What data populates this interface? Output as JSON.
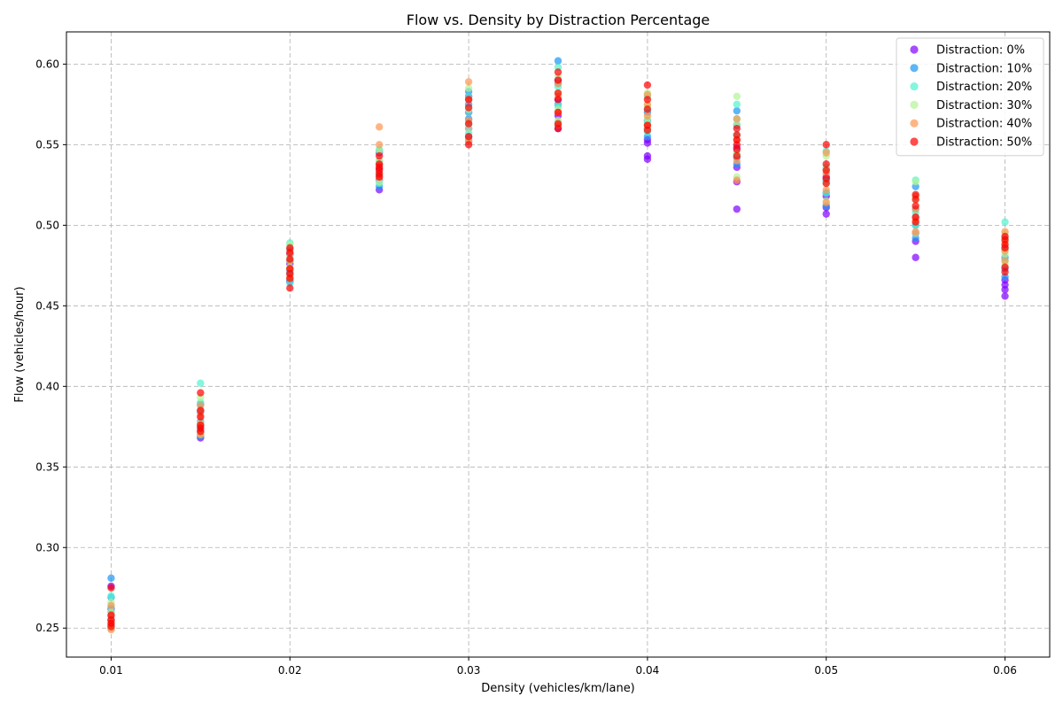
{
  "chart_data": {
    "type": "scatter",
    "title": "Flow vs. Density by Distraction Percentage",
    "xlabel": "Density (vehicles/km/lane)",
    "ylabel": "Flow (vehicles/hour)",
    "xlim": [
      0.0075,
      0.0625
    ],
    "ylim": [
      0.232,
      0.62
    ],
    "xticks": [
      0.01,
      0.02,
      0.03,
      0.04,
      0.05,
      0.06
    ],
    "xtick_labels": [
      "0.01",
      "0.02",
      "0.03",
      "0.04",
      "0.05",
      "0.06"
    ],
    "yticks": [
      0.25,
      0.3,
      0.35,
      0.4,
      0.45,
      0.5,
      0.55,
      0.6
    ],
    "ytick_labels": [
      "0.25",
      "0.30",
      "0.35",
      "0.40",
      "0.45",
      "0.50",
      "0.55",
      "0.60"
    ],
    "grid": true,
    "legend_position": "top-right",
    "x": [
      0.01,
      0.015,
      0.02,
      0.025,
      0.03,
      0.035,
      0.04,
      0.045,
      0.05,
      0.055,
      0.06
    ],
    "series": [
      {
        "name": "Distraction: 0%",
        "color": "#8000ff",
        "values": [
          [
            0.25,
            0.255,
            0.262,
            0.276
          ],
          [
            0.368,
            0.372,
            0.378,
            0.385
          ],
          [
            0.465,
            0.47,
            0.476,
            0.482
          ],
          [
            0.522,
            0.528,
            0.535,
            0.545
          ],
          [
            0.552,
            0.56,
            0.57,
            0.58
          ],
          [
            0.56,
            0.568,
            0.578,
            0.59
          ],
          [
            0.541,
            0.543,
            0.551,
            0.553
          ],
          [
            0.51,
            0.527,
            0.536,
            0.548
          ],
          [
            0.507,
            0.511,
            0.518,
            0.53
          ],
          [
            0.48,
            0.49,
            0.495,
            0.505
          ],
          [
            0.456,
            0.46,
            0.463,
            0.466
          ]
        ]
      },
      {
        "name": "Distraction: 10%",
        "color": "#1996f3",
        "values": [
          [
            0.252,
            0.26,
            0.269,
            0.281
          ],
          [
            0.369,
            0.375,
            0.384,
            0.389
          ],
          [
            0.466,
            0.472,
            0.478,
            0.485
          ],
          [
            0.524,
            0.531,
            0.538,
            0.546
          ],
          [
            0.555,
            0.566,
            0.575,
            0.583
          ],
          [
            0.562,
            0.575,
            0.588,
            0.602
          ],
          [
            0.555,
            0.56,
            0.565,
            0.57
          ],
          [
            0.538,
            0.542,
            0.562,
            0.571
          ],
          [
            0.512,
            0.52,
            0.528,
            0.535
          ],
          [
            0.492,
            0.5,
            0.51,
            0.524
          ],
          [
            0.468,
            0.473,
            0.48,
            0.486
          ]
        ]
      },
      {
        "name": "Distraction: 20%",
        "color": "#4df3ce",
        "values": [
          [
            0.251,
            0.257,
            0.263,
            0.27
          ],
          [
            0.37,
            0.378,
            0.39,
            0.402
          ],
          [
            0.464,
            0.47,
            0.478,
            0.489
          ],
          [
            0.526,
            0.532,
            0.54,
            0.547
          ],
          [
            0.557,
            0.563,
            0.57,
            0.58
          ],
          [
            0.564,
            0.574,
            0.586,
            0.598
          ],
          [
            0.558,
            0.563,
            0.572,
            0.58
          ],
          [
            0.544,
            0.556,
            0.566,
            0.575
          ],
          [
            0.52,
            0.527,
            0.536,
            0.546
          ],
          [
            0.5,
            0.508,
            0.518,
            0.528
          ],
          [
            0.478,
            0.485,
            0.492,
            0.502
          ]
        ]
      },
      {
        "name": "Distraction: 30%",
        "color": "#b2f396",
        "values": [
          [
            0.25,
            0.254,
            0.26,
            0.266
          ],
          [
            0.371,
            0.377,
            0.385,
            0.393
          ],
          [
            0.467,
            0.474,
            0.481,
            0.488
          ],
          [
            0.527,
            0.533,
            0.54,
            0.546
          ],
          [
            0.552,
            0.56,
            0.572,
            0.585
          ],
          [
            0.565,
            0.572,
            0.582,
            0.592
          ],
          [
            0.56,
            0.566,
            0.574,
            0.582
          ],
          [
            0.53,
            0.545,
            0.563,
            0.58
          ],
          [
            0.515,
            0.526,
            0.535,
            0.543
          ],
          [
            0.495,
            0.505,
            0.516,
            0.527
          ],
          [
            0.476,
            0.482,
            0.488,
            0.495
          ]
        ]
      },
      {
        "name": "Distraction: 40%",
        "color": "#ff964f",
        "values": [
          [
            0.249,
            0.253,
            0.258,
            0.264
          ],
          [
            0.37,
            0.376,
            0.382,
            0.388
          ],
          [
            0.468,
            0.473,
            0.478,
            0.484
          ],
          [
            0.53,
            0.537,
            0.55,
            0.561
          ],
          [
            0.553,
            0.565,
            0.578,
            0.589
          ],
          [
            0.562,
            0.57,
            0.58,
            0.588
          ],
          [
            0.562,
            0.568,
            0.575,
            0.581
          ],
          [
            0.528,
            0.54,
            0.553,
            0.566
          ],
          [
            0.514,
            0.522,
            0.532,
            0.545
          ],
          [
            0.496,
            0.503,
            0.51,
            0.518
          ],
          [
            0.478,
            0.484,
            0.49,
            0.496
          ]
        ]
      },
      {
        "name": "Distraction: 50%",
        "color": "#ff0000",
        "values": [
          [
            0.251,
            0.253,
            0.255,
            0.258,
            0.275
          ],
          [
            0.372,
            0.374,
            0.376,
            0.381,
            0.385,
            0.396
          ],
          [
            0.461,
            0.467,
            0.47,
            0.473,
            0.479,
            0.483,
            0.486
          ],
          [
            0.53,
            0.532,
            0.534,
            0.536,
            0.538,
            0.543
          ],
          [
            0.55,
            0.555,
            0.563,
            0.573,
            0.578
          ],
          [
            0.56,
            0.563,
            0.57,
            0.578,
            0.582,
            0.59,
            0.595
          ],
          [
            0.559,
            0.562,
            0.572,
            0.578,
            0.587
          ],
          [
            0.543,
            0.547,
            0.55,
            0.553,
            0.556,
            0.56
          ],
          [
            0.526,
            0.529,
            0.534,
            0.538,
            0.55
          ],
          [
            0.502,
            0.505,
            0.512,
            0.516,
            0.519
          ],
          [
            0.471,
            0.474,
            0.486,
            0.488,
            0.491,
            0.493
          ]
        ]
      }
    ]
  }
}
